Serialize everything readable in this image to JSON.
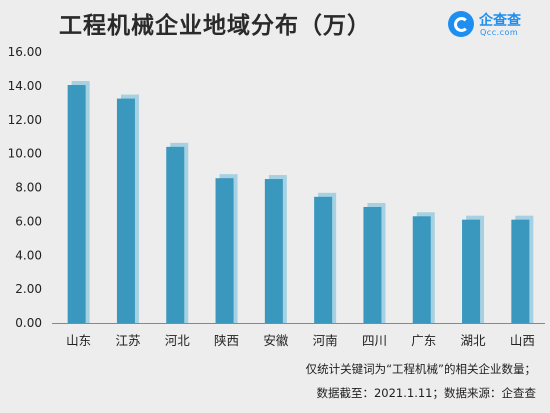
{
  "title": "工程机械企业地域分布（万）",
  "logo": {
    "name": "企查查",
    "domain": "Qcc.com"
  },
  "notes": {
    "line1": "仅统计关键词为“工程机械”的相关企业数量；",
    "line2": "数据截至：2021.1.11；数据来源：企查查"
  },
  "colors": {
    "bar": "#3a97bd",
    "bar_shadow": "#a6d1e2",
    "axis": "#888888"
  },
  "chart_data": {
    "type": "bar",
    "title": "工程机械企业地域分布（万）",
    "categories": [
      "山东",
      "江苏",
      "河北",
      "陕西",
      "安徽",
      "河南",
      "四川",
      "广东",
      "湖北",
      "山西"
    ],
    "values": [
      14.05,
      13.25,
      10.4,
      8.55,
      8.5,
      7.45,
      6.85,
      6.3,
      6.1,
      6.1
    ],
    "ylim": [
      0,
      16
    ],
    "yticks": [
      "0.00",
      "2.00",
      "4.00",
      "6.00",
      "8.00",
      "10.00",
      "12.00",
      "14.00",
      "16.00"
    ],
    "grid": false
  }
}
